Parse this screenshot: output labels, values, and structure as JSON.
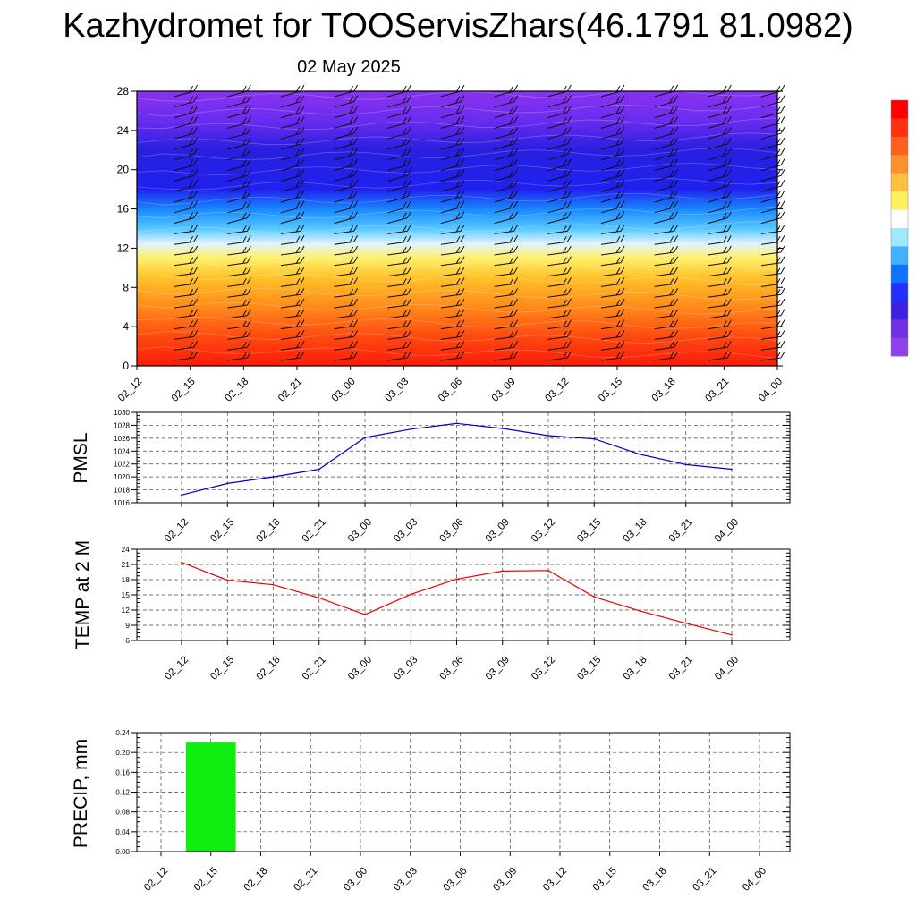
{
  "page": {
    "title": "Kazhydromet for TOOServisZhars(46.1791 81.0982)",
    "date": "02 May 2025"
  },
  "chart_data": [
    {
      "type": "heatmap",
      "name": "cross-section",
      "x_ticks": [
        "02_12",
        "02_15",
        "02_18",
        "02_21",
        "03_00",
        "03_03",
        "03_06",
        "03_09",
        "03_12",
        "03_15",
        "03_18",
        "03_21",
        "04_00"
      ],
      "y_ticks": [
        0,
        4,
        8,
        12,
        16,
        20,
        24,
        28
      ],
      "ylim": [
        0,
        28
      ],
      "color_bands": [
        {
          "y": 0,
          "color": "#ff1a0a"
        },
        {
          "y": 3,
          "color": "#ff4a10"
        },
        {
          "y": 6,
          "color": "#ff8a1a"
        },
        {
          "y": 9,
          "color": "#ffc22a"
        },
        {
          "y": 11,
          "color": "#fff06a"
        },
        {
          "y": 12.5,
          "color": "#dff4ff"
        },
        {
          "y": 14,
          "color": "#56c8ff"
        },
        {
          "y": 16,
          "color": "#1888ff"
        },
        {
          "y": 18,
          "color": "#2020ee"
        },
        {
          "y": 22,
          "color": "#2820e0"
        },
        {
          "y": 25,
          "color": "#6a2cf0"
        },
        {
          "y": 28,
          "color": "#8a32f0"
        }
      ],
      "colorbar": [
        "#ff0000",
        "#ff3010",
        "#ff6020",
        "#ff9030",
        "#ffc040",
        "#fff060",
        "#ffffff",
        "#a0e8ff",
        "#40b0ff",
        "#1070ff",
        "#2030ff",
        "#4020e0",
        "#7030e0",
        "#9040e8"
      ]
    },
    {
      "type": "line",
      "name": "pmsl",
      "ylabel": "PMSL",
      "x": [
        "02_12",
        "02_15",
        "02_18",
        "02_21",
        "03_00",
        "03_03",
        "03_06",
        "03_09",
        "03_12",
        "03_15",
        "03_18",
        "03_21",
        "04_00"
      ],
      "series": [
        {
          "values": [
            1017.2,
            1019.0,
            1020.0,
            1021.2,
            1026.1,
            1027.4,
            1028.3,
            1027.5,
            1026.4,
            1025.9,
            1023.5,
            1021.9,
            1021.2
          ],
          "color": "#0000cc"
        }
      ],
      "ylim": [
        1016,
        1030
      ],
      "y_ticks": [
        1016,
        1018,
        1020,
        1022,
        1024,
        1026,
        1028,
        1030
      ]
    },
    {
      "type": "line",
      "name": "temperature",
      "ylabel": "TEMP at 2 M",
      "x": [
        "02_12",
        "02_15",
        "02_18",
        "02_21",
        "03_00",
        "03_03",
        "03_06",
        "03_09",
        "03_12",
        "03_15",
        "03_18",
        "03_21",
        "04_00"
      ],
      "series": [
        {
          "values": [
            21.4,
            17.9,
            17.0,
            14.4,
            11.1,
            15.1,
            18.1,
            19.7,
            19.8,
            14.6,
            11.8,
            9.4,
            7.1
          ],
          "color": "#ee0000"
        }
      ],
      "ylim": [
        6,
        24
      ],
      "y_ticks": [
        6,
        9,
        12,
        15,
        18,
        21,
        24
      ]
    },
    {
      "type": "bar",
      "name": "precipitation",
      "ylabel": "PRECIP, mm",
      "categories": [
        "02_12",
        "02_15",
        "02_18",
        "02_21",
        "03_00",
        "03_03",
        "03_06",
        "03_09",
        "03_12",
        "03_15",
        "03_18",
        "03_21",
        "04_00"
      ],
      "values": [
        0,
        0.22,
        0,
        0,
        0,
        0,
        0,
        0,
        0,
        0,
        0,
        0,
        0
      ],
      "bar_color": "#10ee10",
      "ylim": [
        0,
        0.24
      ],
      "y_ticks": [
        "0.00",
        "0.04",
        "0.08",
        "0.12",
        "0.16",
        "0.20",
        "0.24"
      ]
    }
  ]
}
